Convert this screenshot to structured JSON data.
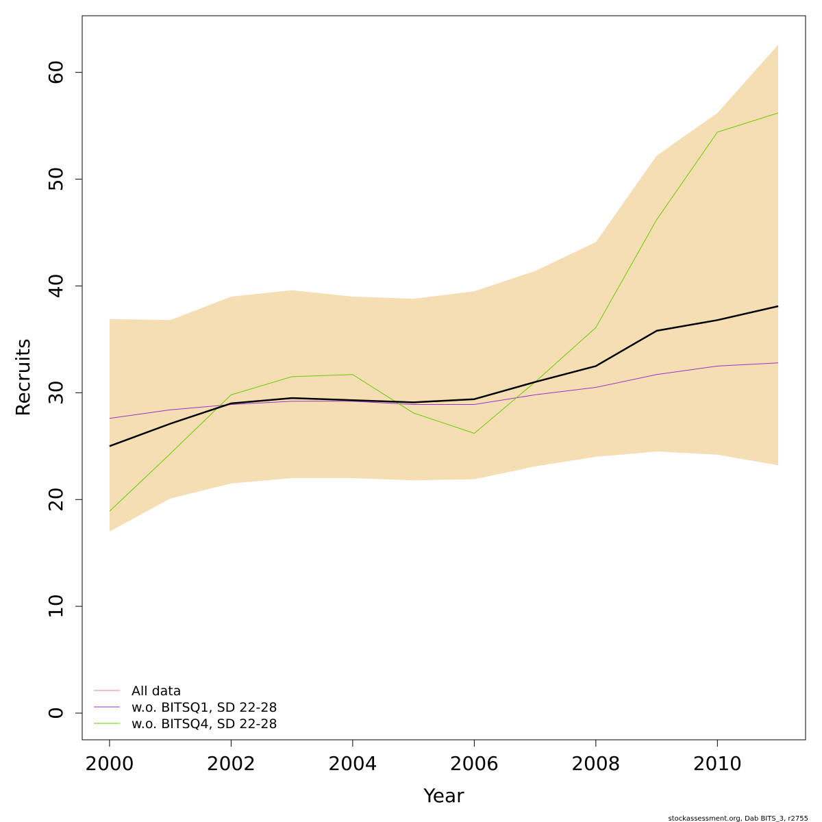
{
  "chart_data": {
    "type": "line",
    "xlabel": "Year",
    "ylabel": "Recruits",
    "xlim": [
      1999.55,
      2011.45
    ],
    "ylim": [
      -2.5,
      65.3
    ],
    "x_ticks": [
      2000,
      2002,
      2004,
      2006,
      2008,
      2010
    ],
    "y_ticks": [
      0,
      10,
      20,
      30,
      40,
      50,
      60
    ],
    "x_tick_labels": [
      "2000",
      "2002",
      "2004",
      "2006",
      "2008",
      "2010"
    ],
    "y_tick_labels": [
      "0",
      "10",
      "20",
      "30",
      "40",
      "50",
      "60"
    ],
    "x": [
      2000,
      2001,
      2002,
      2003,
      2004,
      2005,
      2006,
      2007,
      2008,
      2009,
      2010,
      2011
    ],
    "band": {
      "color": "#F5DEB3",
      "lower": [
        17.0,
        20.1,
        21.5,
        22.0,
        22.0,
        21.8,
        21.9,
        23.1,
        24.0,
        24.5,
        24.2,
        23.2
      ],
      "upper": [
        36.9,
        36.8,
        39.0,
        39.6,
        39.0,
        38.8,
        39.5,
        41.4,
        44.1,
        52.2,
        56.2,
        62.6
      ]
    },
    "series": [
      {
        "name": "All data",
        "color": "#000000",
        "width": 2.5,
        "in_legend": false,
        "values": [
          25.0,
          27.1,
          29.0,
          29.5,
          29.3,
          29.1,
          29.4,
          31.0,
          32.5,
          35.8,
          36.8,
          38.1
        ]
      },
      {
        "name": "w.o. BITSQ1, SD 22-28",
        "color": "#9933CC",
        "width": 1,
        "in_legend": true,
        "values": [
          27.6,
          28.4,
          28.9,
          29.2,
          29.2,
          28.9,
          28.9,
          29.8,
          30.5,
          31.7,
          32.5,
          32.8
        ]
      },
      {
        "name": "w.o. BITSQ4, SD 22-28",
        "color": "#66CC00",
        "width": 1,
        "in_legend": true,
        "values": [
          18.9,
          24.3,
          29.8,
          31.5,
          31.7,
          28.1,
          26.2,
          31.0,
          36.1,
          46.2,
          54.4,
          56.2
        ]
      }
    ],
    "legend": {
      "position": "bottom-left",
      "entries": [
        {
          "label": "All data",
          "color": "#F08080"
        },
        {
          "label": "w.o. BITSQ1, SD 22-28",
          "color": "#9933CC"
        },
        {
          "label": "w.o. BITSQ4, SD 22-28",
          "color": "#66CC00"
        }
      ]
    },
    "grid": false
  },
  "footer": "stockassessment.org, Dab BITS_3, r2755"
}
